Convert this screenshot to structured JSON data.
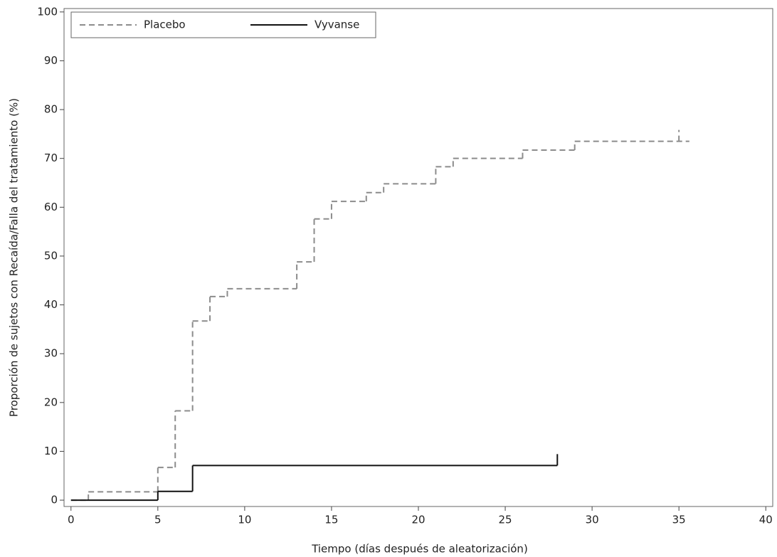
{
  "chart_data": {
    "type": "step",
    "xlabel": "Tiempo (días después de aleatorización)",
    "ylabel": "Proporción de sujetos con Recaída/Falla del tratamiento (%)",
    "xlim": [
      -0.4,
      40.4
    ],
    "ylim": [
      -1.3,
      100.7
    ],
    "xticks": [
      0,
      5,
      10,
      15,
      20,
      25,
      30,
      35,
      40
    ],
    "yticks": [
      0,
      10,
      20,
      30,
      40,
      50,
      60,
      70,
      80,
      90,
      100
    ],
    "legend": "upper-left",
    "series": [
      {
        "name": "Placebo",
        "color": "#8c8c8c",
        "dash": true,
        "x": [
          0,
          1,
          5,
          6,
          7,
          8,
          9,
          13,
          14,
          15,
          17,
          18,
          21,
          22,
          26,
          29,
          35.6
        ],
        "values": [
          0,
          1.7,
          6.7,
          18.3,
          36.7,
          41.7,
          43.3,
          48.8,
          57.6,
          61.2,
          63.0,
          64.8,
          68.3,
          70.0,
          71.7,
          73.5,
          73.5
        ],
        "censored": [
          35
        ]
      },
      {
        "name": "Vyvanse",
        "color": "#111111",
        "dash": false,
        "x": [
          0,
          5,
          7,
          28
        ],
        "values": [
          0,
          1.8,
          7.1,
          7.1
        ],
        "censored": [
          28
        ]
      }
    ]
  }
}
